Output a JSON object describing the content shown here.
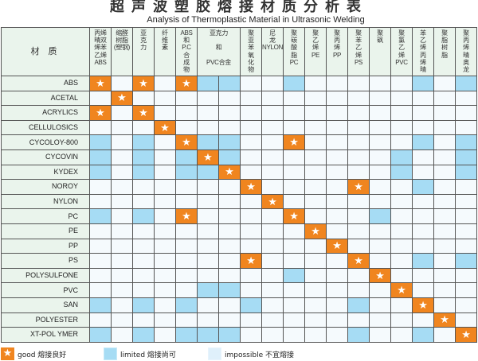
{
  "title": "超声波塑胶熔接材质分析表",
  "subtitle": "Analysis of Thermoplastic Material in Ultrasonic Welding",
  "chart_data": {
    "type": "table",
    "corner_label": "材 质",
    "columns": [
      {
        "label": "丙烯\n晴双\n烯苯\n乙烯\nABS",
        "span": 1
      },
      {
        "label": "缩醛\n树脂\n(塑钢)",
        "span": 1
      },
      {
        "label": "亚\n克\n力",
        "span": 1
      },
      {
        "label": "纤\n维\n素",
        "span": 1
      },
      {
        "label": "ABS\n和\nP.C\n合\n成\n物",
        "span": 1
      },
      {
        "label": "亚克力\n\n和\n\nPVC合金",
        "span": 2
      },
      {
        "label": "聚\n亚\n苯\n氧\n化\n物",
        "span": 1
      },
      {
        "label": "尼\n龙\nNYLON",
        "span": 1
      },
      {
        "label": "聚\n碳\n酸\n脂\nPC",
        "span": 1
      },
      {
        "label": "聚\n乙\n烯\nPE",
        "span": 1
      },
      {
        "label": "聚\n丙\n烯\nPP",
        "span": 1
      },
      {
        "label": "聚\n苯\n乙\n烯\nPS",
        "span": 1
      },
      {
        "label": "聚\n砜",
        "span": 1
      },
      {
        "label": "聚\n氯\n乙\n烯\nPVC",
        "span": 1
      },
      {
        "label": "苯\n乙\n烯\n丙\n烯\n晴",
        "span": 1
      },
      {
        "label": "聚\n脂\n树\n脂",
        "span": 1
      },
      {
        "label": "聚\n丙\n烯\n晴\n奥\n龙",
        "span": 1
      }
    ],
    "cell_codes": {
      "g": "good",
      "l": "limited",
      "x": "impossible"
    },
    "rows": [
      {
        "name": "ABS",
        "cells": [
          "g",
          "x",
          "g",
          "x",
          "g",
          "l",
          "l",
          "x",
          "x",
          "l",
          "x",
          "x",
          "x",
          "x",
          "x",
          "l",
          "x",
          "l"
        ]
      },
      {
        "name": "ACETAL",
        "cells": [
          "x",
          "g",
          "x",
          "x",
          "x",
          "x",
          "x",
          "x",
          "x",
          "x",
          "x",
          "x",
          "x",
          "x",
          "x",
          "x",
          "x",
          "x"
        ]
      },
      {
        "name": "ACRYLICS",
        "cells": [
          "g",
          "x",
          "g",
          "x",
          "x",
          "x",
          "x",
          "x",
          "x",
          "x",
          "x",
          "x",
          "x",
          "x",
          "x",
          "x",
          "x",
          "x"
        ]
      },
      {
        "name": "CELLULOSICS",
        "cells": [
          "x",
          "x",
          "x",
          "g",
          "x",
          "x",
          "x",
          "x",
          "x",
          "x",
          "x",
          "x",
          "x",
          "x",
          "x",
          "x",
          "x",
          "x"
        ]
      },
      {
        "name": "CYCOLOY-800",
        "cells": [
          "l",
          "x",
          "l",
          "x",
          "g",
          "l",
          "l",
          "x",
          "x",
          "g",
          "x",
          "x",
          "x",
          "x",
          "x",
          "l",
          "x",
          "l"
        ]
      },
      {
        "name": "CYCOVIN",
        "cells": [
          "l",
          "x",
          "l",
          "x",
          "l",
          "g",
          "l",
          "x",
          "x",
          "x",
          "x",
          "x",
          "x",
          "x",
          "l",
          "x",
          "x",
          "l"
        ]
      },
      {
        "name": "KYDEX",
        "cells": [
          "l",
          "x",
          "l",
          "x",
          "l",
          "l",
          "g",
          "x",
          "x",
          "x",
          "x",
          "x",
          "x",
          "x",
          "l",
          "x",
          "x",
          "l"
        ]
      },
      {
        "name": "NOROY",
        "cells": [
          "x",
          "x",
          "x",
          "x",
          "x",
          "x",
          "x",
          "g",
          "x",
          "x",
          "x",
          "x",
          "g",
          "x",
          "x",
          "l",
          "x",
          "x"
        ]
      },
      {
        "name": "NYLON",
        "cells": [
          "x",
          "x",
          "x",
          "x",
          "x",
          "x",
          "x",
          "x",
          "g",
          "x",
          "x",
          "x",
          "x",
          "x",
          "x",
          "x",
          "x",
          "x"
        ]
      },
      {
        "name": "PC",
        "cells": [
          "l",
          "x",
          "l",
          "x",
          "g",
          "x",
          "x",
          "x",
          "x",
          "g",
          "x",
          "x",
          "x",
          "l",
          "x",
          "x",
          "x",
          "x"
        ]
      },
      {
        "name": "PE",
        "cells": [
          "x",
          "x",
          "x",
          "x",
          "x",
          "x",
          "x",
          "x",
          "x",
          "x",
          "g",
          "x",
          "x",
          "x",
          "x",
          "x",
          "x",
          "x"
        ]
      },
      {
        "name": "PP",
        "cells": [
          "x",
          "x",
          "x",
          "x",
          "x",
          "x",
          "x",
          "x",
          "x",
          "x",
          "x",
          "g",
          "x",
          "x",
          "x",
          "x",
          "x",
          "x"
        ]
      },
      {
        "name": "PS",
        "cells": [
          "x",
          "x",
          "x",
          "x",
          "x",
          "x",
          "x",
          "g",
          "x",
          "x",
          "x",
          "x",
          "g",
          "x",
          "x",
          "l",
          "x",
          "l"
        ]
      },
      {
        "name": "POLYSULFONE",
        "cells": [
          "x",
          "x",
          "x",
          "x",
          "x",
          "x",
          "x",
          "x",
          "x",
          "l",
          "x",
          "x",
          "x",
          "g",
          "x",
          "x",
          "x",
          "x"
        ]
      },
      {
        "name": "PVC",
        "cells": [
          "x",
          "x",
          "x",
          "x",
          "x",
          "l",
          "l",
          "x",
          "x",
          "x",
          "x",
          "x",
          "x",
          "x",
          "g",
          "x",
          "x",
          "x"
        ]
      },
      {
        "name": "SAN",
        "cells": [
          "l",
          "x",
          "l",
          "x",
          "l",
          "x",
          "x",
          "l",
          "x",
          "x",
          "x",
          "x",
          "l",
          "x",
          "x",
          "g",
          "x",
          "x"
        ]
      },
      {
        "name": "POLYESTER",
        "cells": [
          "x",
          "x",
          "x",
          "x",
          "x",
          "x",
          "x",
          "x",
          "x",
          "x",
          "x",
          "x",
          "x",
          "x",
          "x",
          "x",
          "g",
          "x"
        ]
      },
      {
        "name": "XT-POL YMER",
        "cells": [
          "l",
          "x",
          "l",
          "x",
          "l",
          "l",
          "l",
          "x",
          "x",
          "x",
          "x",
          "x",
          "l",
          "x",
          "x",
          "l",
          "x",
          "g"
        ]
      }
    ]
  },
  "legend": {
    "good": "good 熔接良好",
    "limited": "limited 熔接尚可",
    "impossible": "impossible  不宜熔接"
  },
  "colors": {
    "good": "#f0851f",
    "limited": "#a6dcf4",
    "impossible": "#dff0fb",
    "header_bg": "#eaf4ec"
  },
  "icons": {
    "good": "star-icon"
  }
}
